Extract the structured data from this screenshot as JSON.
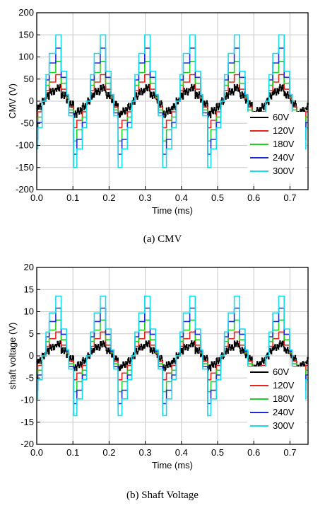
{
  "chart_data": [
    {
      "type": "line",
      "xlabel": "Time (ms)",
      "ylabel": "CMV (V)",
      "xlim": [
        0.0,
        0.75
      ],
      "ylim": [
        -200,
        200
      ],
      "xticks": [
        0.0,
        0.1,
        0.2,
        0.3,
        0.4,
        0.5,
        0.6,
        0.7
      ],
      "xtick_labels": [
        "0.0",
        "0.1",
        "0.2",
        "0.3",
        "0.4",
        "0.5",
        "0.6",
        "0.7"
      ],
      "yticks": [
        -200,
        -150,
        -100,
        -50,
        0,
        50,
        100,
        150,
        200
      ],
      "ytick_labels": [
        "-200",
        "-150",
        "-100",
        "-50",
        "0",
        "50",
        "100",
        "150",
        "200"
      ],
      "grid": true,
      "legend_position": "bottom-right",
      "period_ms": 0.1235,
      "series": [
        {
          "name": "60V",
          "color": "#000000",
          "amplitude": 30
        },
        {
          "name": "120V",
          "color": "#e8231d",
          "amplitude": 60
        },
        {
          "name": "180V",
          "color": "#1fd11f",
          "amplitude": 90
        },
        {
          "name": "240V",
          "color": "#1f2cd6",
          "amplitude": 120
        },
        {
          "name": "300V",
          "color": "#17dcef",
          "amplitude": 150
        }
      ],
      "caption": "(a)  CMV"
    },
    {
      "type": "line",
      "xlabel": "Time (ms)",
      "ylabel": "shaft voltage (V)",
      "xlim": [
        0.0,
        0.75
      ],
      "ylim": [
        -20,
        20
      ],
      "xticks": [
        0.0,
        0.1,
        0.2,
        0.3,
        0.4,
        0.5,
        0.6,
        0.7
      ],
      "xtick_labels": [
        "0.0",
        "0.1",
        "0.2",
        "0.3",
        "0.4",
        "0.5",
        "0.6",
        "0.7"
      ],
      "yticks": [
        -20,
        -15,
        -10,
        -5,
        0,
        5,
        10,
        15,
        20
      ],
      "ytick_labels": [
        "-20",
        "-15",
        "-10",
        "-5",
        "0",
        "5",
        "10",
        "15",
        "20"
      ],
      "grid": true,
      "legend_position": "bottom-right",
      "period_ms": 0.1235,
      "series": [
        {
          "name": "60V",
          "color": "#000000",
          "amplitude": 2.7
        },
        {
          "name": "120V",
          "color": "#e8231d",
          "amplitude": 5.4
        },
        {
          "name": "180V",
          "color": "#1fd11f",
          "amplitude": 8.1
        },
        {
          "name": "240V",
          "color": "#1f2cd6",
          "amplitude": 10.8
        },
        {
          "name": "300V",
          "color": "#17dcef",
          "amplitude": 13.5
        }
      ],
      "caption": "(b)  Shaft Voltage"
    }
  ]
}
